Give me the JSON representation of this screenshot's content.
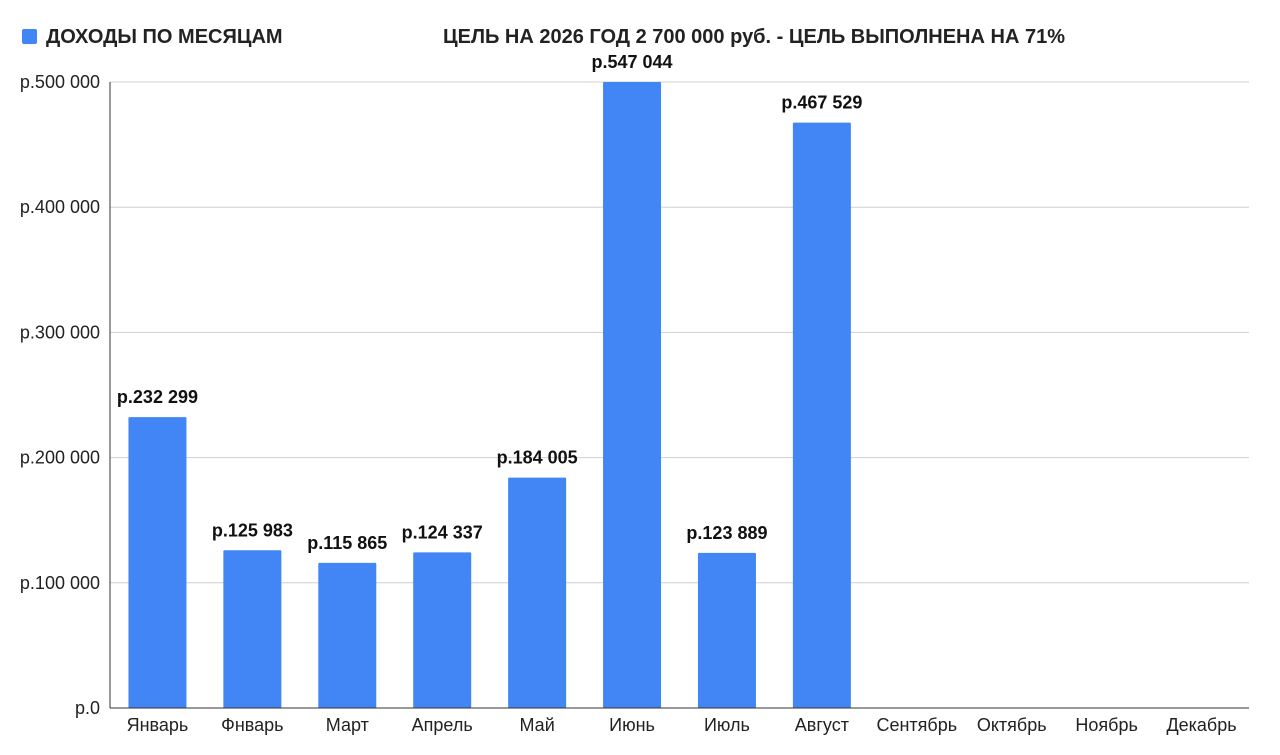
{
  "chart_data": {
    "type": "bar",
    "title": "ЦЕЛЬ НА 2026 ГОД 2 700 000 руб. - ЦЕЛЬ ВЫПОЛНЕНА НА 71%",
    "legend": {
      "position": "top-left",
      "entries": [
        "ДОХОДЫ ПО МЕСЯЦАМ"
      ]
    },
    "series": [
      {
        "name": "ДОХОДЫ ПО МЕСЯЦАМ",
        "color": "#4285F4",
        "values": [
          232299,
          125983,
          115865,
          124337,
          184005,
          547044,
          123889,
          467529,
          null,
          null,
          null,
          null
        ],
        "data_labels": [
          "р.232 299",
          "р.125 983",
          "р.115 865",
          "р.124 337",
          "р.184 005",
          "р.547 044",
          "р.123 889",
          "р.467 529",
          "",
          "",
          "",
          ""
        ]
      }
    ],
    "categories": [
      "Январь",
      "Фнварь",
      "Март",
      "Апрель",
      "Май",
      "Июнь",
      "Июль",
      "Август",
      "Сентябрь",
      "Октябрь",
      "Ноябрь",
      "Декабрь"
    ],
    "ylim": [
      0,
      500000
    ],
    "yticks": [
      0,
      100000,
      200000,
      300000,
      400000,
      500000
    ],
    "ytick_labels": [
      "р.0",
      "р.100 000",
      "р.200 000",
      "р.300 000",
      "р.400 000",
      "р.500 000"
    ],
    "grid": true,
    "xlabel": "",
    "ylabel": ""
  }
}
